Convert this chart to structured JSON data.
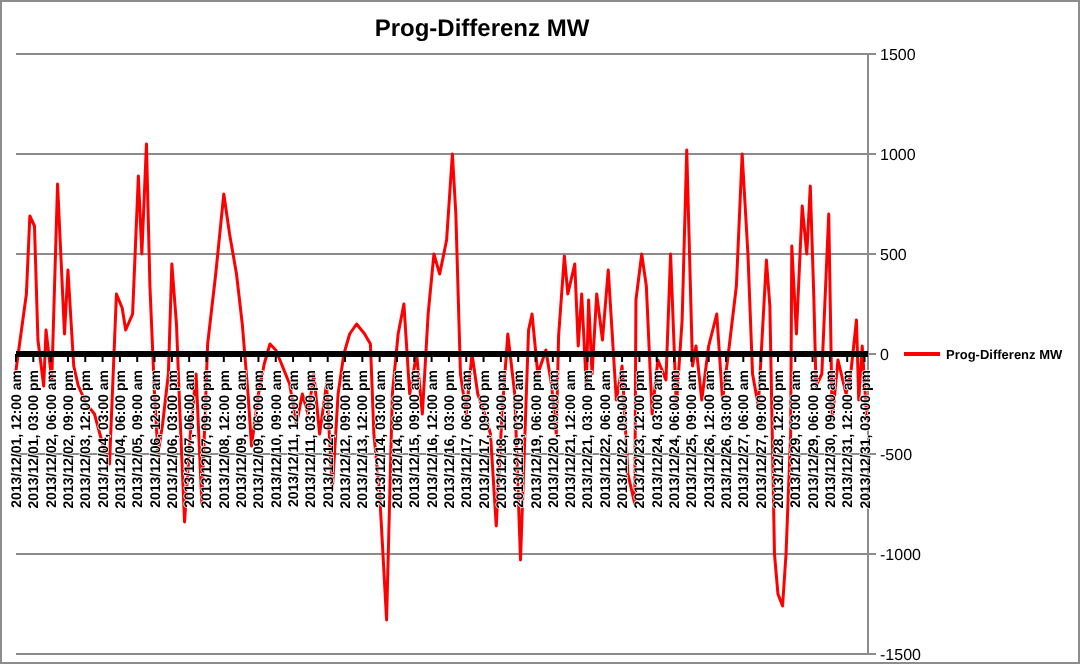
{
  "chart_data": {
    "type": "line",
    "title": "Prog-Differenz MW",
    "x": [
      "2013-12-01T00:00",
      "2013-12-01T09:00",
      "2013-12-01T12:00",
      "2013-12-01T16:00",
      "2013-12-01T19:00",
      "2013-12-02T00:00",
      "2013-12-02T02:00",
      "2013-12-02T07:00",
      "2013-12-02T12:00",
      "2013-12-02T18:00",
      "2013-12-02T21:00",
      "2013-12-03T02:00",
      "2013-12-03T06:00",
      "2013-12-03T13:00",
      "2013-12-03T20:00",
      "2013-12-04T03:00",
      "2013-12-04T09:00",
      "2013-12-04T15:00",
      "2013-12-04T20:00",
      "2013-12-04T23:00",
      "2013-12-05T05:00",
      "2013-12-05T10:00",
      "2013-12-05T13:00",
      "2013-12-05T17:00",
      "2013-12-05T20:00",
      "2013-12-06T00:00",
      "2013-12-06T03:00",
      "2013-12-06T07:00",
      "2013-12-06T12:00",
      "2013-12-06T15:00",
      "2013-12-06T19:00",
      "2013-12-06T22:00",
      "2013-12-07T02:00",
      "2013-12-07T07:00",
      "2013-12-07T12:00",
      "2013-12-07T17:00",
      "2013-12-07T22:00",
      "2013-12-08T05:00",
      "2013-12-08T12:00",
      "2013-12-08T17:00",
      "2013-12-08T23:00",
      "2013-12-09T04:00",
      "2013-12-09T09:00",
      "2013-12-09T12:00",
      "2013-12-09T18:00",
      "2013-12-09T23:00",
      "2013-12-10T04:00",
      "2013-12-10T09:00",
      "2013-12-10T14:00",
      "2013-12-10T21:00",
      "2013-12-11T03:00",
      "2013-12-11T08:00",
      "2013-12-11T13:00",
      "2013-12-11T18:00",
      "2013-12-11T23:00",
      "2013-12-12T05:00",
      "2013-12-12T10:00",
      "2013-12-12T15:00",
      "2013-12-12T20:00",
      "2013-12-13T01:00",
      "2013-12-13T07:00",
      "2013-12-13T14:00",
      "2013-12-13T19:00",
      "2013-12-13T22:00",
      "2013-12-14T03:00",
      "2013-12-14T09:00",
      "2013-12-14T14:00",
      "2013-12-14T19:00",
      "2013-12-15T00:00",
      "2013-12-15T05:00",
      "2013-12-15T11:00",
      "2013-12-15T16:00",
      "2013-12-15T21:00",
      "2013-12-16T02:00",
      "2013-12-16T07:00",
      "2013-12-16T13:00",
      "2013-12-16T18:00",
      "2013-12-16T21:00",
      "2013-12-17T01:00",
      "2013-12-17T06:00",
      "2013-12-17T11:00",
      "2013-12-17T16:00",
      "2013-12-17T22:00",
      "2013-12-18T03:00",
      "2013-12-18T08:00",
      "2013-12-18T13:00",
      "2013-12-18T18:00",
      "2013-12-19T00:00",
      "2013-12-19T05:00",
      "2013-12-19T12:00",
      "2013-12-19T15:00",
      "2013-12-19T20:00",
      "2013-12-20T03:00",
      "2013-12-20T08:00",
      "2013-12-20T12:00",
      "2013-12-20T14:00",
      "2013-12-20T19:00",
      "2013-12-20T22:00",
      "2013-12-21T04:00",
      "2013-12-21T07:00",
      "2013-12-21T10:00",
      "2013-12-21T14:00",
      "2013-12-21T16:00",
      "2013-12-21T19:00",
      "2013-12-21T23:00",
      "2013-12-22T04:00",
      "2013-12-22T09:00",
      "2013-12-22T16:00",
      "2013-12-22T21:00",
      "2013-12-23T02:00",
      "2013-12-23T08:00",
      "2013-12-23T09:00",
      "2013-12-23T14:00",
      "2013-12-23T18:00",
      "2013-12-23T23:00",
      "2013-12-24T04:00",
      "2013-12-24T11:00",
      "2013-12-24T15:00",
      "2013-12-24T20:00",
      "2013-12-25T01:00",
      "2013-12-25T05:00",
      "2013-12-25T10:00",
      "2013-12-25T13:00",
      "2013-12-25T18:00",
      "2013-12-26T00:00",
      "2013-12-26T07:00",
      "2013-12-26T12:00",
      "2013-12-26T17:00",
      "2013-12-27T00:00",
      "2013-12-27T05:00",
      "2013-12-27T10:00",
      "2013-12-27T14:00",
      "2013-12-27T19:00",
      "2013-12-28T02:00",
      "2013-12-28T05:00",
      "2013-12-28T09:00",
      "2013-12-28T12:00",
      "2013-12-28T16:00",
      "2013-12-28T19:00",
      "2013-12-28T23:00",
      "2013-12-29T00:00",
      "2013-12-29T04:00",
      "2013-12-29T09:00",
      "2013-12-29T13:00",
      "2013-12-29T16:00",
      "2013-12-29T19:00",
      "2013-12-29T21:00",
      "2013-12-30T02:00",
      "2013-12-30T08:00",
      "2013-12-30T11:00",
      "2013-12-30T16:00",
      "2013-12-30T23:00",
      "2013-12-31T03:00",
      "2013-12-31T08:00",
      "2013-12-31T10:00",
      "2013-12-31T13:00",
      "2013-12-31T17:00"
    ],
    "series": [
      {
        "name": "Prog-Differenz MW",
        "color": "#ff0000",
        "values": [
          -80,
          300,
          690,
          640,
          70,
          -160,
          120,
          -130,
          850,
          100,
          420,
          -60,
          -160,
          -250,
          -300,
          -450,
          -550,
          300,
          230,
          120,
          200,
          890,
          500,
          1050,
          340,
          -200,
          -500,
          -350,
          -100,
          450,
          150,
          -300,
          -840,
          -400,
          -100,
          -750,
          50,
          400,
          800,
          600,
          400,
          150,
          -200,
          -460,
          -200,
          -50,
          50,
          20,
          -50,
          -150,
          -350,
          -200,
          -300,
          -100,
          -400,
          -150,
          -680,
          -200,
          0,
          100,
          150,
          100,
          50,
          -400,
          -700,
          -1330,
          -200,
          100,
          250,
          -200,
          0,
          -300,
          200,
          500,
          400,
          570,
          1000,
          700,
          -100,
          -300,
          0,
          -200,
          -300,
          -400,
          -860,
          -300,
          100,
          -200,
          -1030,
          120,
          200,
          -100,
          20,
          -160,
          -400,
          90,
          490,
          300,
          450,
          40,
          300,
          -160,
          270,
          -100,
          300,
          70,
          420,
          -230,
          -60,
          -600,
          -750,
          270,
          500,
          340,
          -300,
          -30,
          -130,
          500,
          -260,
          170,
          1020,
          -60,
          40,
          -230,
          40,
          200,
          -230,
          0,
          340,
          1000,
          500,
          -100,
          -260,
          470,
          240,
          -1000,
          -1200,
          -1260,
          -1000,
          -400,
          540,
          100,
          740,
          500,
          840,
          300,
          -160,
          -100,
          700,
          -330,
          -30,
          -200,
          -100,
          170,
          -230,
          40,
          -330
        ]
      }
    ],
    "xlim": [
      "2013-12-01T00:00",
      "2013-12-31T18:00"
    ],
    "xticks": [
      {
        "value": "2013-12-01T00:00",
        "label": "2013/12/01, 12:00 am"
      },
      {
        "value": "2013-12-01T15:00",
        "label": "2013/12/01, 03:00 pm"
      },
      {
        "value": "2013-12-02T06:00",
        "label": "2013/12/02, 06:00 am"
      },
      {
        "value": "2013-12-02T21:00",
        "label": "2013/12/02, 09:00 pm"
      },
      {
        "value": "2013-12-03T12:00",
        "label": "2013/12/03, 12:00 pm"
      },
      {
        "value": "2013-12-04T03:00",
        "label": "2013/12/04, 03:00 am"
      },
      {
        "value": "2013-12-04T18:00",
        "label": "2013/12/04, 06:00 pm"
      },
      {
        "value": "2013-12-05T09:00",
        "label": "2013/12/05, 09:00 am"
      },
      {
        "value": "2013-12-06T00:00",
        "label": "2013/12/06, 12:00 am"
      },
      {
        "value": "2013-12-06T15:00",
        "label": "2013/12/06, 03:00 pm"
      },
      {
        "value": "2013-12-07T06:00",
        "label": "2013/12/07, 06:00 am"
      },
      {
        "value": "2013-12-07T21:00",
        "label": "2013/12/07, 09:00 pm"
      },
      {
        "value": "2013-12-08T12:00",
        "label": "2013/12/08, 12:00 pm"
      },
      {
        "value": "2013-12-09T03:00",
        "label": "2013/12/09, 03:00 am"
      },
      {
        "value": "2013-12-09T18:00",
        "label": "2013/12/09, 06:00 pm"
      },
      {
        "value": "2013-12-10T09:00",
        "label": "2013/12/10, 09:00 am"
      },
      {
        "value": "2013-12-11T00:00",
        "label": "2013/12/11, 12:00 am"
      },
      {
        "value": "2013-12-11T15:00",
        "label": "2013/12/11, 03:00 pm"
      },
      {
        "value": "2013-12-12T06:00",
        "label": "2013/12/12, 06:00 am"
      },
      {
        "value": "2013-12-12T21:00",
        "label": "2013/12/12, 09:00 pm"
      },
      {
        "value": "2013-12-13T12:00",
        "label": "2013/12/13, 12:00 pm"
      },
      {
        "value": "2013-12-14T03:00",
        "label": "2013/12/14, 03:00 am"
      },
      {
        "value": "2013-12-14T18:00",
        "label": "2013/12/14, 06:00 pm"
      },
      {
        "value": "2013-12-15T09:00",
        "label": "2013/12/15, 09:00 am"
      },
      {
        "value": "2013-12-16T00:00",
        "label": "2013/12/16, 12:00 am"
      },
      {
        "value": "2013-12-16T15:00",
        "label": "2013/12/16, 03:00 pm"
      },
      {
        "value": "2013-12-17T06:00",
        "label": "2013/12/17, 06:00 am"
      },
      {
        "value": "2013-12-17T21:00",
        "label": "2013/12/17, 09:00 pm"
      },
      {
        "value": "2013-12-18T12:00",
        "label": "2013/12/18, 12:00 pm"
      },
      {
        "value": "2013-12-19T03:00",
        "label": "2013/12/19, 03:00 am"
      },
      {
        "value": "2013-12-19T18:00",
        "label": "2013/12/19, 06:00 pm"
      },
      {
        "value": "2013-12-20T09:00",
        "label": "2013/12/20, 09:00 am"
      },
      {
        "value": "2013-12-21T00:00",
        "label": "2013/12/21, 12:00 am"
      },
      {
        "value": "2013-12-21T15:00",
        "label": "2013/12/21, 03:00 pm"
      },
      {
        "value": "2013-12-22T06:00",
        "label": "2013/12/22, 06:00 am"
      },
      {
        "value": "2013-12-22T21:00",
        "label": "2013/12/22, 09:00 pm"
      },
      {
        "value": "2013-12-23T12:00",
        "label": "2013/12/23, 12:00 pm"
      },
      {
        "value": "2013-12-24T03:00",
        "label": "2013/12/24, 03:00 am"
      },
      {
        "value": "2013-12-24T18:00",
        "label": "2013/12/24, 06:00 pm"
      },
      {
        "value": "2013-12-25T09:00",
        "label": "2013/12/25, 09:00 am"
      },
      {
        "value": "2013-12-26T00:00",
        "label": "2013/12/26, 12:00 am"
      },
      {
        "value": "2013-12-26T15:00",
        "label": "2013/12/26, 03:00 pm"
      },
      {
        "value": "2013-12-27T06:00",
        "label": "2013/12/27, 06:00 am"
      },
      {
        "value": "2013-12-27T21:00",
        "label": "2013/12/27, 09:00 pm"
      },
      {
        "value": "2013-12-28T12:00",
        "label": "2013/12/28, 12:00 pm"
      },
      {
        "value": "2013-12-29T03:00",
        "label": "2013/12/29, 03:00 am"
      },
      {
        "value": "2013-12-29T18:00",
        "label": "2013/12/29, 06:00 pm"
      },
      {
        "value": "2013-12-30T09:00",
        "label": "2013/12/30, 09:00 am"
      },
      {
        "value": "2013-12-31T00:00",
        "label": "2013/12/31, 12:00 am"
      },
      {
        "value": "2013-12-31T15:00",
        "label": "2013/12/31, 03:00 pm"
      }
    ],
    "ylim": [
      -1500,
      1500
    ],
    "yticks": [
      -1500,
      -1000,
      -500,
      0,
      500,
      1000,
      1500
    ],
    "grid": "y",
    "legend": "right",
    "marker": "none",
    "line_style": "solid"
  }
}
